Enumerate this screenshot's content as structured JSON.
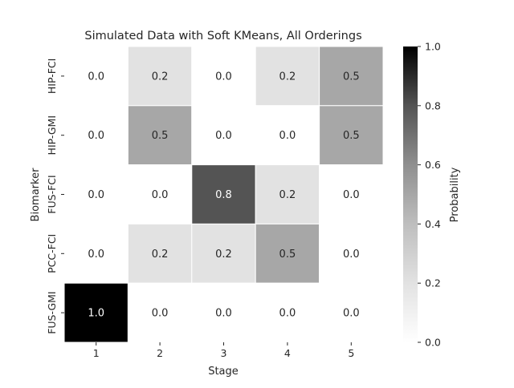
{
  "chart_data": {
    "type": "heatmap",
    "title": "Simulated Data with Soft KMeans, All Orderings",
    "xlabel": "Stage",
    "ylabel": "Biomarker",
    "x_categories": [
      "1",
      "2",
      "3",
      "4",
      "5"
    ],
    "y_categories": [
      "HIP-FCI",
      "HIP-GMI",
      "FUS-FCI",
      "PCC-FCI",
      "FUS-GMI"
    ],
    "values": [
      [
        0.0,
        0.2,
        0.0,
        0.2,
        0.5
      ],
      [
        0.0,
        0.5,
        0.0,
        0.0,
        0.5
      ],
      [
        0.0,
        0.0,
        0.8,
        0.2,
        0.0
      ],
      [
        0.0,
        0.2,
        0.2,
        0.5,
        0.0
      ],
      [
        1.0,
        0.0,
        0.0,
        0.0,
        0.0
      ]
    ],
    "value_labels": [
      [
        "0.0",
        "0.2",
        "0.0",
        "0.2",
        "0.5"
      ],
      [
        "0.0",
        "0.5",
        "0.0",
        "0.0",
        "0.5"
      ],
      [
        "0.0",
        "0.0",
        "0.8",
        "0.2",
        "0.0"
      ],
      [
        "0.0",
        "0.2",
        "0.2",
        "0.5",
        "0.0"
      ],
      [
        "1.0",
        "0.0",
        "0.0",
        "0.0",
        "0.0"
      ]
    ],
    "colorbar": {
      "label": "Probability",
      "range": [
        0.0,
        1.0
      ],
      "ticks": [
        0.0,
        0.2,
        0.4,
        0.6,
        0.8,
        1.0
      ],
      "tick_labels": [
        "0.0",
        "0.2",
        "0.4",
        "0.6",
        "0.8",
        "1.0"
      ],
      "colormap": "Greys"
    },
    "grid_line_color": "#ffffff"
  }
}
